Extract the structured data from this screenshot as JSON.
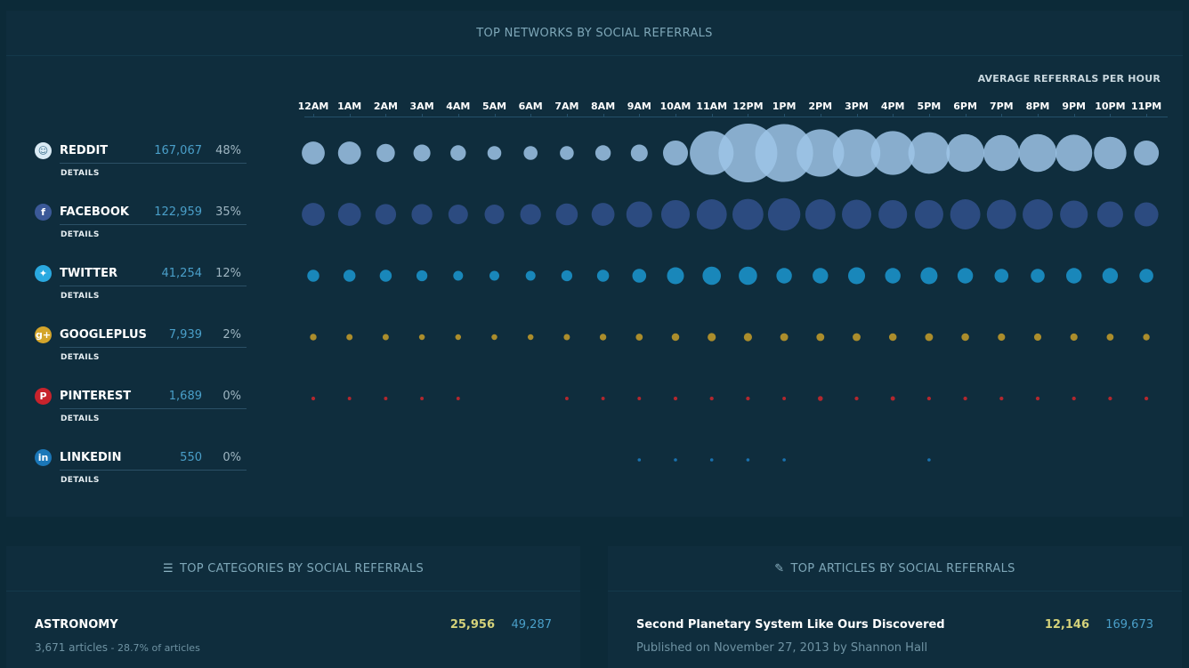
{
  "networks_panel": {
    "title": "TOP NETWORKS BY SOCIAL REFERRALS",
    "axis_label": "AVERAGE REFERRALS PER HOUR",
    "details_label": "DETAILS",
    "hours": [
      "12AM",
      "1AM",
      "2AM",
      "3AM",
      "4AM",
      "5AM",
      "6AM",
      "7AM",
      "8AM",
      "9AM",
      "10AM",
      "11AM",
      "12PM",
      "1PM",
      "2PM",
      "3PM",
      "4PM",
      "5PM",
      "6PM",
      "7PM",
      "8PM",
      "9PM",
      "10PM",
      "11PM"
    ],
    "networks": [
      {
        "name": "REDDIT",
        "count": "167,067",
        "pct": "48%",
        "icon": "reddit-icon",
        "icon_glyph": "☺",
        "color": "#9dc4e6",
        "icon_bg": "#d9eaf4",
        "icon_fg": "#3a6f8c"
      },
      {
        "name": "FACEBOOK",
        "count": "122,959",
        "pct": "35%",
        "icon": "facebook-icon",
        "icon_glyph": "f",
        "color": "#2f4e86",
        "icon_bg": "#3b5998",
        "icon_fg": "#ffffff"
      },
      {
        "name": "TWITTER",
        "count": "41,254",
        "pct": "12%",
        "icon": "twitter-icon",
        "icon_glyph": "✦",
        "color": "#1a8fc4",
        "icon_bg": "#2aa9e0",
        "icon_fg": "#ffffff"
      },
      {
        "name": "GOOGLEPLUS",
        "count": "7,939",
        "pct": "2%",
        "icon": "googleplus-icon",
        "icon_glyph": "g+",
        "color": "#b8962a",
        "icon_bg": "#d4a52b",
        "icon_fg": "#ffffff"
      },
      {
        "name": "PINTEREST",
        "count": "1,689",
        "pct": "0%",
        "icon": "pinterest-icon",
        "icon_glyph": "P",
        "color": "#c1272d",
        "icon_bg": "#c8232c",
        "icon_fg": "#ffffff"
      },
      {
        "name": "LINKEDIN",
        "count": "550",
        "pct": "0%",
        "icon": "linkedin-icon",
        "icon_glyph": "in",
        "color": "#1b77b8",
        "icon_bg": "#1b77b8",
        "icon_fg": "#ffffff"
      }
    ]
  },
  "chart_data": {
    "type": "scatter",
    "x": [
      "12AM",
      "1AM",
      "2AM",
      "3AM",
      "4AM",
      "5AM",
      "6AM",
      "7AM",
      "8AM",
      "9AM",
      "10AM",
      "11AM",
      "12PM",
      "1PM",
      "2PM",
      "3PM",
      "4PM",
      "5PM",
      "6PM",
      "7PM",
      "8PM",
      "9PM",
      "10PM",
      "11PM"
    ],
    "value_measure": "average referrals per hour",
    "series": [
      {
        "name": "REDDIT",
        "values": [
          11,
          11,
          7,
          6,
          5,
          4,
          4,
          4,
          5,
          6,
          13,
          40,
          72,
          70,
          47,
          47,
          40,
          36,
          30,
          27,
          30,
          28,
          22,
          13
        ]
      },
      {
        "name": "FACEBOOK",
        "values": [
          11,
          11,
          9,
          9,
          8,
          8,
          9,
          10,
          11,
          14,
          17,
          19,
          20,
          22,
          19,
          18,
          17,
          17,
          19,
          18,
          19,
          16,
          14,
          12
        ]
      },
      {
        "name": "TWITTER",
        "values": [
          3,
          3,
          3,
          2.5,
          2,
          2,
          2,
          2.5,
          3,
          4,
          6,
          7,
          7,
          5,
          5,
          6,
          5,
          6,
          5,
          4,
          4,
          5,
          5,
          4
        ]
      },
      {
        "name": "GOOGLEPLUS",
        "values": [
          0.9,
          0.8,
          0.8,
          0.7,
          0.7,
          0.7,
          0.7,
          0.8,
          0.9,
          1,
          1.2,
          1.4,
          1.4,
          1.3,
          1.3,
          1.3,
          1.2,
          1.3,
          1.2,
          1.1,
          1.1,
          1.1,
          1,
          0.9
        ]
      },
      {
        "name": "PINTEREST",
        "values": [
          0.3,
          0.25,
          0.25,
          0.25,
          0.25,
          0,
          0,
          0.25,
          0.25,
          0.25,
          0.3,
          0.3,
          0.3,
          0.25,
          0.5,
          0.3,
          0.4,
          0.3,
          0.3,
          0.3,
          0.3,
          0.3,
          0.3,
          0.3
        ]
      },
      {
        "name": "LINKEDIN",
        "values": [
          0,
          0,
          0,
          0,
          0,
          0,
          0,
          0,
          0,
          0.15,
          0.15,
          0.15,
          0.15,
          0.15,
          0,
          0,
          0,
          0.15,
          0,
          0,
          0,
          0,
          0,
          0
        ]
      }
    ]
  },
  "categories_panel": {
    "title": "TOP CATEGORIES BY SOCIAL REFERRALS",
    "icon": "list-icon",
    "row": {
      "title": "ASTRONOMY",
      "subtitle": "3,671 articles",
      "subtitle_extra": " - 28.7% of articles",
      "value_a": "25,956",
      "value_b": "49,287"
    }
  },
  "articles_panel": {
    "title": "TOP ARTICLES BY SOCIAL REFERRALS",
    "icon": "edit-icon",
    "row": {
      "title": "Second Planetary System Like Ours Discovered",
      "subtitle": "Published on November 27, 2013 by Shannon Hall",
      "value_a": "12,146",
      "value_b": "169,673"
    }
  }
}
